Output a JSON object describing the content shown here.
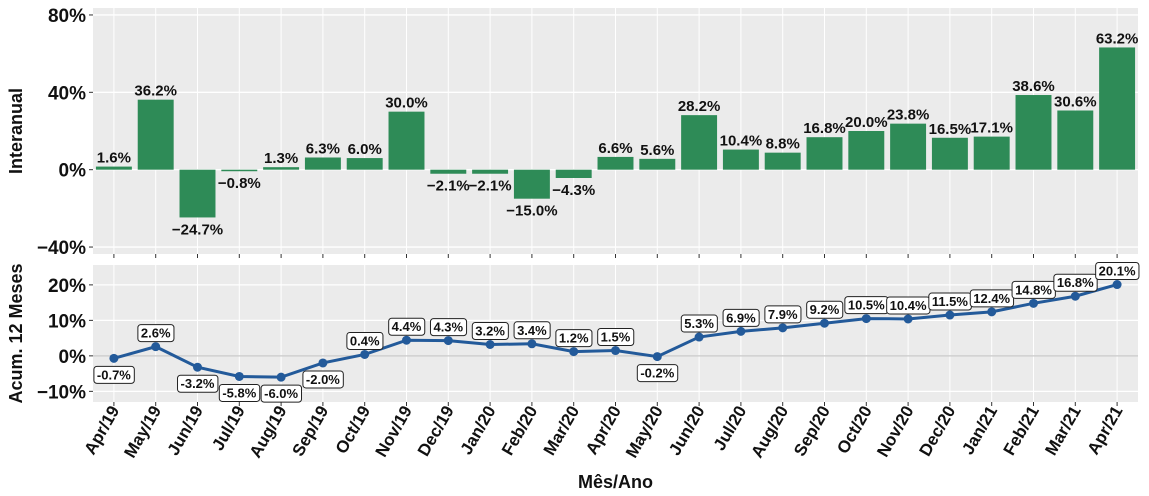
{
  "chart_data": [
    {
      "type": "bar",
      "y_label": "Interanual",
      "categories": [
        "Apr/19",
        "May/19",
        "Jun/19",
        "Jul/19",
        "Aug/19",
        "Sep/19",
        "Oct/19",
        "Nov/19",
        "Dec/19",
        "Jan/20",
        "Feb/20",
        "Mar/20",
        "Apr/20",
        "May/20",
        "Jun/20",
        "Jul/20",
        "Aug/20",
        "Sep/20",
        "Oct/20",
        "Nov/20",
        "Dec/20",
        "Jan/21",
        "Feb/21",
        "Mar/21",
        "Apr/21"
      ],
      "values": [
        1.6,
        36.2,
        -24.7,
        -0.8,
        1.3,
        6.3,
        6.0,
        30.0,
        -2.1,
        -2.1,
        -15.0,
        -4.3,
        6.6,
        5.6,
        28.2,
        10.4,
        8.8,
        16.8,
        20.0,
        23.8,
        16.5,
        17.1,
        38.6,
        30.6,
        63.2
      ],
      "value_labels": [
        "1.6%",
        "36.2%",
        "−24.7%",
        "−0.8%",
        "1.3%",
        "6.3%",
        "6.0%",
        "30.0%",
        "−2.1%",
        "−2.1%",
        "−15.0%",
        "−4.3%",
        "6.6%",
        "5.6%",
        "28.2%",
        "10.4%",
        "8.8%",
        "16.8%",
        "20.0%",
        "23.8%",
        "16.5%",
        "17.1%",
        "38.6%",
        "30.6%",
        "63.2%"
      ],
      "color": "#2e8b57",
      "ylim": [
        -43.6,
        83.6
      ],
      "yticks": [
        {
          "value": -40,
          "label": "−40%"
        },
        {
          "value": 0,
          "label": "0%"
        },
        {
          "value": 40,
          "label": "40%"
        },
        {
          "value": 80,
          "label": "80%"
        }
      ],
      "grid": true
    },
    {
      "type": "line",
      "y_label": "Acum. 12 Meses",
      "x_label": "Mês/Ano",
      "categories": [
        "Apr/19",
        "May/19",
        "Jun/19",
        "Jul/19",
        "Aug/19",
        "Sep/19",
        "Oct/19",
        "Nov/19",
        "Dec/19",
        "Jan/20",
        "Feb/20",
        "Mar/20",
        "Apr/20",
        "May/20",
        "Jun/20",
        "Jul/20",
        "Aug/20",
        "Sep/20",
        "Oct/20",
        "Nov/20",
        "Dec/20",
        "Jan/21",
        "Feb/21",
        "Mar/21",
        "Apr/21"
      ],
      "values": [
        -0.7,
        2.6,
        -3.2,
        -5.8,
        -6.0,
        -2.0,
        0.4,
        4.4,
        4.3,
        3.2,
        3.4,
        1.2,
        1.5,
        -0.2,
        5.3,
        6.9,
        7.9,
        9.2,
        10.5,
        10.4,
        11.5,
        12.4,
        14.8,
        16.8,
        20.1
      ],
      "value_labels": [
        "-0.7%",
        "2.6%",
        "-3.2%",
        "-5.8%",
        "-6.0%",
        "-2.0%",
        "0.4%",
        "4.4%",
        "4.3%",
        "3.2%",
        "3.4%",
        "1.2%",
        "1.5%",
        "-0.2%",
        "5.3%",
        "6.9%",
        "7.9%",
        "9.2%",
        "10.5%",
        "10.4%",
        "11.5%",
        "12.4%",
        "14.8%",
        "16.8%",
        "20.1%"
      ],
      "color": "#235a9a",
      "ylim": [
        -13,
        25.6
      ],
      "yticks": [
        {
          "value": -10,
          "label": "−10%"
        },
        {
          "value": 0,
          "label": "0%"
        },
        {
          "value": 10,
          "label": "10%"
        },
        {
          "value": 20,
          "label": "20%"
        }
      ],
      "grid": true
    }
  ]
}
